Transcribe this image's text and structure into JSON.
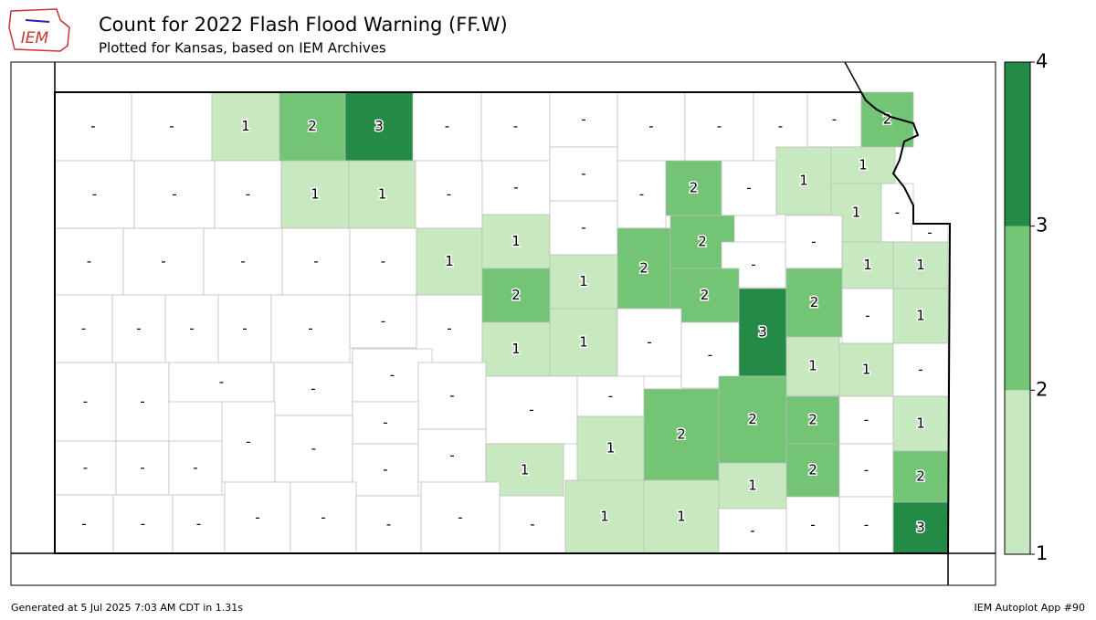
{
  "header": {
    "title": "Count for 2022 Flash Flood Warning (FF.W)",
    "subtitle": "Plotted for Kansas, based on IEM Archives",
    "logo": "IEM"
  },
  "counties": [
    "-",
    "-",
    1,
    2,
    3,
    "-",
    "-",
    "-",
    "-",
    "-",
    "-",
    "-",
    2,
    "-",
    "-",
    "-",
    1,
    1,
    "-",
    "-",
    "-",
    "-",
    2,
    "-",
    1,
    1,
    1,
    "-",
    "-",
    "-",
    "-",
    "-",
    "-",
    1,
    1,
    "-",
    2,
    2,
    "-",
    "-",
    1,
    1,
    "-",
    "-",
    "-",
    "-",
    "-",
    "-",
    "-",
    "-",
    2,
    1,
    2,
    3,
    2,
    "-",
    1,
    1,
    1,
    "-",
    "-",
    "-",
    "-",
    "-",
    "-",
    "-",
    "-",
    "-",
    "-",
    1,
    1,
    "-",
    "-",
    "-",
    2,
    2,
    2,
    "-",
    1,
    "-",
    "-",
    "-",
    "-",
    "-",
    "-",
    1,
    1,
    2,
    "-",
    2,
    1,
    "-",
    "-",
    "-",
    "-",
    "-",
    "-",
    "-",
    "-",
    1,
    1,
    "-",
    "-",
    "-",
    3
  ],
  "colorbar": {
    "ticks": [
      1,
      2,
      3,
      4
    ],
    "colors": [
      "#c7e9c0",
      "#74c476",
      "#238b45"
    ]
  },
  "footer": {
    "left": "Generated at 5 Jul 2025 7:03 AM CDT in 1.31s",
    "right": "IEM Autoplot App #90"
  }
}
